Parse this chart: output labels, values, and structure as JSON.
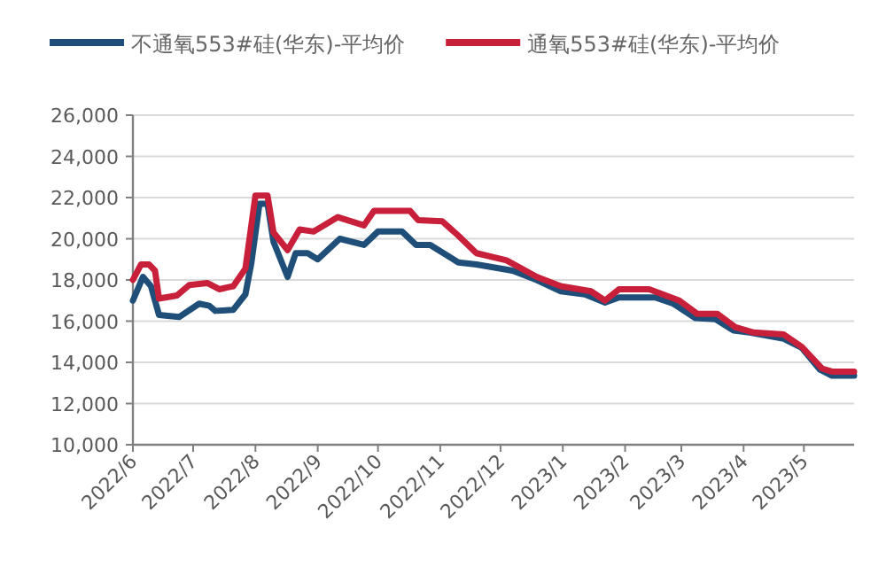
{
  "chart_data": {
    "type": "line",
    "legend": "top",
    "grid": "y",
    "line_style": "solid",
    "xlim": [
      "2022-06-01",
      "2023-05-26"
    ],
    "xticks": [
      {
        "value": "2022-06",
        "label": "2022/6"
      },
      {
        "value": "2022-07",
        "label": "2022/7"
      },
      {
        "value": "2022-08",
        "label": "2022/8"
      },
      {
        "value": "2022-09",
        "label": "2022/9"
      },
      {
        "value": "2022-10",
        "label": "2022/10"
      },
      {
        "value": "2022-11",
        "label": "2022/11"
      },
      {
        "value": "2022-12",
        "label": "2022/12"
      },
      {
        "value": "2023-01",
        "label": "2023/1"
      },
      {
        "value": "2023-02",
        "label": "2023/2"
      },
      {
        "value": "2023-03",
        "label": "2023/3"
      },
      {
        "value": "2023-04",
        "label": "2023/4"
      },
      {
        "value": "2023-05",
        "label": "2023/5"
      }
    ],
    "ylim": [
      10000,
      26000
    ],
    "yticks": [
      {
        "value": 10000,
        "label": "10,000"
      },
      {
        "value": 12000,
        "label": "12,000"
      },
      {
        "value": 14000,
        "label": "14,000"
      },
      {
        "value": 16000,
        "label": "16,000"
      },
      {
        "value": 18000,
        "label": "18,000"
      },
      {
        "value": 20000,
        "label": "20,000"
      },
      {
        "value": 22000,
        "label": "22,000"
      },
      {
        "value": 24000,
        "label": "24,000"
      },
      {
        "value": 26000,
        "label": "26,000"
      }
    ],
    "series": [
      {
        "name": "不通氧553#硅(华东)-平均价",
        "color": "#1f4e79",
        "x": [
          "2022-06-01",
          "2022-06-06",
          "2022-06-10",
          "2022-06-14",
          "2022-06-24",
          "2022-07-04",
          "2022-07-09",
          "2022-07-12",
          "2022-07-21",
          "2022-07-27",
          "2022-07-30",
          "2022-08-03",
          "2022-08-07",
          "2022-08-10",
          "2022-08-17",
          "2022-08-21",
          "2022-08-27",
          "2022-09-01",
          "2022-09-12",
          "2022-09-24",
          "2022-10-01",
          "2022-10-13",
          "2022-10-20",
          "2022-10-27",
          "2022-11-10",
          "2022-11-19",
          "2022-12-07",
          "2022-12-19",
          "2022-12-31",
          "2023-01-12",
          "2023-01-22",
          "2023-01-29",
          "2023-02-16",
          "2023-02-25",
          "2023-03-08",
          "2023-03-18",
          "2023-03-27",
          "2023-04-04",
          "2023-04-21",
          "2023-04-30",
          "2023-05-09",
          "2023-05-15",
          "2023-05-26"
        ],
        "values": [
          17000,
          18150,
          17700,
          16300,
          16200,
          16850,
          16750,
          16500,
          16550,
          17300,
          18850,
          21700,
          21700,
          19850,
          18150,
          19300,
          19300,
          19000,
          20000,
          19700,
          20350,
          20350,
          19700,
          19700,
          18850,
          18750,
          18450,
          18000,
          17450,
          17300,
          16900,
          17150,
          17150,
          16850,
          16150,
          16100,
          15550,
          15450,
          15150,
          14700,
          13650,
          13350,
          13350
        ]
      },
      {
        "name": "通氧553#硅(华东)-平均价",
        "color": "#c8203a",
        "x": [
          "2022-06-01",
          "2022-06-05",
          "2022-06-09",
          "2022-06-12",
          "2022-06-14",
          "2022-06-23",
          "2022-06-29",
          "2022-07-08",
          "2022-07-14",
          "2022-07-21",
          "2022-07-27",
          "2022-08-01",
          "2022-08-07",
          "2022-08-10",
          "2022-08-17",
          "2022-08-23",
          "2022-08-30",
          "2022-09-11",
          "2022-09-24",
          "2022-09-29",
          "2022-10-17",
          "2022-10-21",
          "2022-11-02",
          "2022-11-10",
          "2022-11-19",
          "2022-12-04",
          "2022-12-19",
          "2022-12-31",
          "2023-01-15",
          "2023-01-22",
          "2023-01-29",
          "2023-02-13",
          "2023-02-28",
          "2023-03-09",
          "2023-03-19",
          "2023-03-28",
          "2023-04-06",
          "2023-04-21",
          "2023-04-30",
          "2023-05-10",
          "2023-05-15",
          "2023-05-26"
        ],
        "values": [
          18000,
          18750,
          18750,
          18450,
          17100,
          17250,
          17750,
          17850,
          17550,
          17700,
          18550,
          22100,
          22100,
          20300,
          19450,
          20450,
          20350,
          21050,
          20650,
          21350,
          21350,
          20900,
          20850,
          20150,
          19300,
          18950,
          18150,
          17700,
          17450,
          17000,
          17550,
          17550,
          17000,
          16350,
          16350,
          15700,
          15450,
          15350,
          14750,
          13700,
          13550,
          13550
        ]
      }
    ]
  }
}
